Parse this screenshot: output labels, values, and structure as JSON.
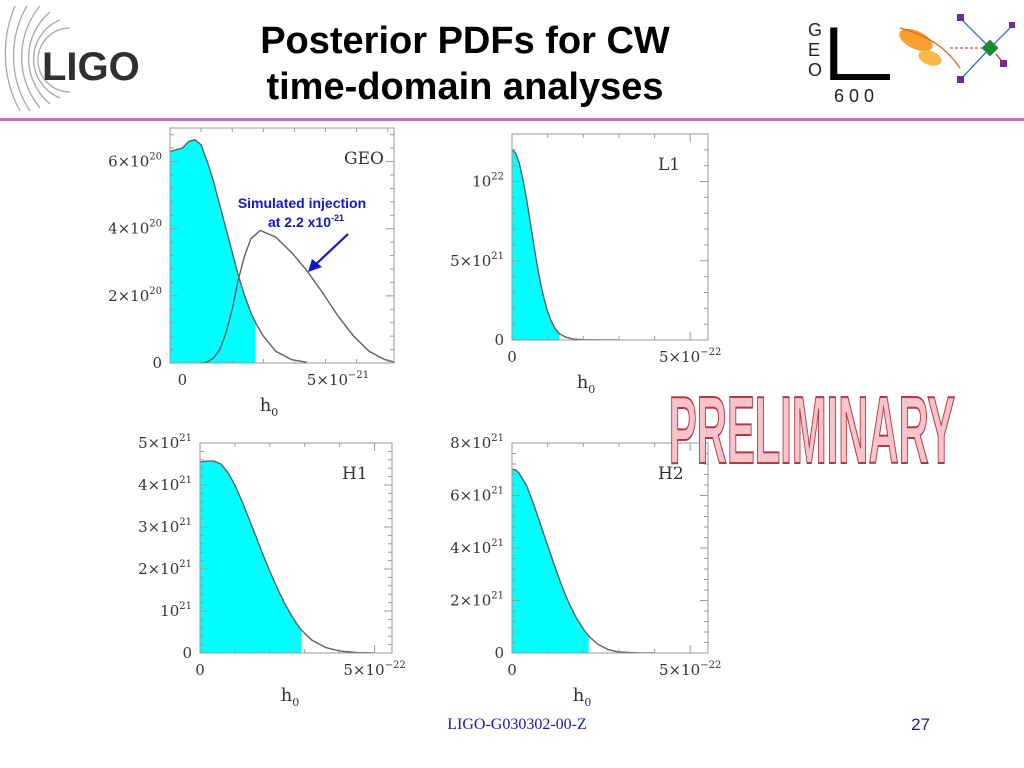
{
  "header": {
    "title_line1": "Posterior PDFs for CW",
    "title_line2": "time-domain analyses",
    "ligo_logo_text": "LIGO",
    "geo_logo_letters": [
      "G",
      "E",
      "O"
    ],
    "geo_logo_big": "L",
    "geo_logo_number": "6 0 0"
  },
  "watermark": "PRELIMINARY",
  "footer": {
    "doc_id": "LIGO-G030302-00-Z",
    "page_number": "27"
  },
  "colors": {
    "fill": "#00ffff",
    "curve": "#606060",
    "annotation": "#1515c8",
    "rule": "#c46cc0",
    "watermark_fill": "#f8c4cc",
    "watermark_stroke": "#b03848"
  },
  "chart_data": [
    {
      "type": "area",
      "detector": "GEO",
      "xlabel": "h",
      "xlabel_sub": "0",
      "xlim": [
        -4e-22,
        6.8e-21
      ],
      "ylim": [
        0,
        7e+20
      ],
      "yticks": [
        {
          "value": 0,
          "mantissa": "0",
          "exp": ""
        },
        {
          "value": 2e+20,
          "mantissa": "2×10",
          "exp": "20"
        },
        {
          "value": 4e+20,
          "mantissa": "4×10",
          "exp": "20"
        },
        {
          "value": 6e+20,
          "mantissa": "6×10",
          "exp": "20"
        }
      ],
      "xticks": [
        {
          "value": 0,
          "mantissa": "0",
          "exp": ""
        },
        {
          "value": 5e-21,
          "mantissa": "5×10",
          "exp": "−21"
        }
      ],
      "fill_upper_limit": 2.35e-21,
      "series": [
        {
          "role": "posterior",
          "x": [
            -4e-22,
            0,
            2e-22,
            4e-22,
            6e-22,
            8e-22,
            1e-21,
            1.2e-21,
            1.4e-21,
            1.6e-21,
            1.8e-21,
            2e-21,
            2.2e-21,
            2.35e-21,
            2.6e-21,
            3e-21,
            3.5e-21,
            4e-21
          ],
          "y": [
            6.3e+20,
            6.4e+20,
            6.6e+20,
            6.65e+20,
            6.5e+20,
            6e+20,
            5.4e+20,
            4.7e+20,
            4e+20,
            3.3e+20,
            2.6e+20,
            2e+20,
            1.5e+20,
            1.2e+20,
            8e+19,
            3.5e+19,
            1e+19,
            2e+18
          ]
        },
        {
          "role": "injection",
          "x": [
            6e-22,
            8e-22,
            1e-21,
            1.2e-21,
            1.4e-21,
            1.6e-21,
            1.8e-21,
            2e-21,
            2.2e-21,
            2.5e-21,
            3e-21,
            3.5e-21,
            4e-21,
            4.5e-21,
            5e-21,
            5.5e-21,
            6e-21,
            6.5e-21,
            6.8e-21
          ],
          "y": [
            0,
            3e+18,
            1.5e+19,
            4e+19,
            9e+19,
            1.6e+20,
            2.5e+20,
            3.2e+20,
            3.7e+20,
            3.95e+20,
            3.75e+20,
            3.3e+20,
            2.75e+20,
            2.1e+20,
            1.4e+20,
            8e+19,
            3.5e+19,
            1e+19,
            3e+18
          ]
        }
      ],
      "annotation": {
        "line1": "Simulated injection",
        "line2_base": "at 2.2 x10",
        "line2_exp": "-21"
      }
    },
    {
      "type": "area",
      "detector": "L1",
      "xlabel": "h",
      "xlabel_sub": "0",
      "xlim": [
        0,
        5.5e-22
      ],
      "ylim": [
        0,
        1.3e+22
      ],
      "yticks": [
        {
          "value": 0,
          "mantissa": "0",
          "exp": ""
        },
        {
          "value": 5e+21,
          "mantissa": "5×10",
          "exp": "21"
        },
        {
          "value": 1e+22,
          "mantissa": "10",
          "exp": "22"
        }
      ],
      "xticks": [
        {
          "value": 0,
          "mantissa": "0",
          "exp": ""
        },
        {
          "value": 5e-22,
          "mantissa": "5×10",
          "exp": "−22"
        }
      ],
      "fill_upper_limit": 1.33e-22,
      "series": [
        {
          "role": "posterior",
          "x": [
            0,
            1e-23,
            2e-23,
            3e-23,
            4e-23,
            5e-23,
            6e-23,
            7e-23,
            8e-23,
            9e-23,
            1e-22,
            1.1e-22,
            1.2e-22,
            1.33e-22,
            1.5e-22,
            1.7e-22,
            2e-22,
            2.5e-22,
            3e-22
          ],
          "y": [
            1.2e+22,
            1.18e+22,
            1.12e+22,
            1.02e+22,
            9e+21,
            7.6e+21,
            6.2e+21,
            4.8e+21,
            3.6e+21,
            2.6e+21,
            1.8e+21,
            1.2e+21,
            7.5e+20,
            4e+20,
            1.8e+20,
            7e+19,
            2e+19,
            3e+18,
            0
          ]
        }
      ]
    },
    {
      "type": "area",
      "detector": "H1",
      "xlabel": "h",
      "xlabel_sub": "0",
      "xlim": [
        0,
        5.5e-22
      ],
      "ylim": [
        0,
        5e+21
      ],
      "yticks": [
        {
          "value": 0,
          "mantissa": "0",
          "exp": ""
        },
        {
          "value": 1e+21,
          "mantissa": "10",
          "exp": "21"
        },
        {
          "value": 2e+21,
          "mantissa": "2×10",
          "exp": "21"
        },
        {
          "value": 3e+21,
          "mantissa": "3×10",
          "exp": "21"
        },
        {
          "value": 4e+21,
          "mantissa": "4×10",
          "exp": "21"
        },
        {
          "value": 5e+21,
          "mantissa": "5×10",
          "exp": "21"
        }
      ],
      "xticks": [
        {
          "value": 0,
          "mantissa": "0",
          "exp": ""
        },
        {
          "value": 5e-22,
          "mantissa": "5×10",
          "exp": "−22"
        }
      ],
      "fill_upper_limit": 2.9e-22,
      "series": [
        {
          "role": "posterior",
          "x": [
            0,
            2e-23,
            4e-23,
            6e-23,
            8e-23,
            1e-22,
            1.2e-22,
            1.4e-22,
            1.6e-22,
            1.8e-22,
            2e-22,
            2.2e-22,
            2.4e-22,
            2.6e-22,
            2.8e-22,
            2.9e-22,
            3.2e-22,
            3.6e-22,
            4e-22,
            4.5e-22,
            5e-22
          ],
          "y": [
            4.55e+21,
            4.57e+21,
            4.57e+21,
            4.5e+21,
            4.3e+21,
            4e+21,
            3.62e+21,
            3.2e+21,
            2.78e+21,
            2.35e+21,
            1.95e+21,
            1.57e+21,
            1.22e+21,
            9.2e+20,
            6.6e+20,
            5.5e+20,
            3.1e+20,
            1.3e+20,
            4.5e+19,
            1e+19,
            2e+18
          ]
        }
      ]
    },
    {
      "type": "area",
      "detector": "H2",
      "xlabel": "h",
      "xlabel_sub": "0",
      "xlim": [
        0,
        5.5e-22
      ],
      "ylim": [
        0,
        8e+21
      ],
      "yticks": [
        {
          "value": 0,
          "mantissa": "0",
          "exp": ""
        },
        {
          "value": 2e+21,
          "mantissa": "2×10",
          "exp": "21"
        },
        {
          "value": 4e+21,
          "mantissa": "4×10",
          "exp": "21"
        },
        {
          "value": 6e+21,
          "mantissa": "6×10",
          "exp": "21"
        },
        {
          "value": 8e+21,
          "mantissa": "8×10",
          "exp": "21"
        }
      ],
      "xticks": [
        {
          "value": 0,
          "mantissa": "0",
          "exp": ""
        },
        {
          "value": 5e-22,
          "mantissa": "5×10",
          "exp": "−22"
        }
      ],
      "fill_upper_limit": 2.15e-22,
      "series": [
        {
          "role": "posterior",
          "x": [
            0,
            1e-23,
            2e-23,
            4e-23,
            6e-23,
            8e-23,
            1e-22,
            1.2e-22,
            1.4e-22,
            1.6e-22,
            1.8e-22,
            2e-22,
            2.15e-22,
            2.4e-22,
            2.7e-22,
            3e-22,
            3.5e-22,
            4e-22
          ],
          "y": [
            7e+21,
            6.98e+21,
            6.85e+21,
            6.4e+21,
            5.7e+21,
            4.9e+21,
            4.1e+21,
            3.3e+21,
            2.55e+21,
            1.9e+21,
            1.35e+21,
            9.2e+20,
            6.5e+20,
            3.4e+20,
            1.3e+20,
            4e+19,
            6e+18,
            0
          ]
        }
      ]
    }
  ]
}
